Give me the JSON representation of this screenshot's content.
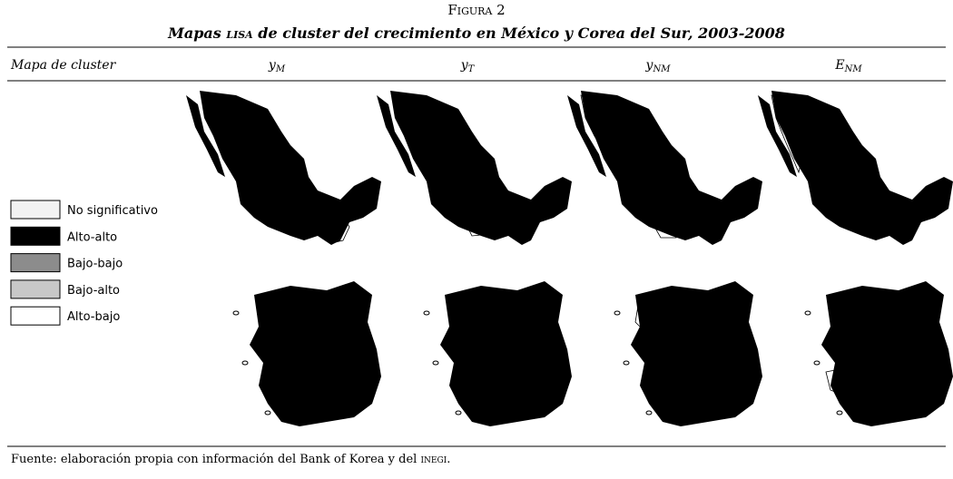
{
  "figure": {
    "label": "Figura 2",
    "title_parts": [
      "Mapas ",
      "lisa",
      " de cluster del crecimiento en México y Corea del Sur, 2003-2008"
    ],
    "row_header": "Mapa de cluster",
    "columns": [
      {
        "main": "y",
        "sub": "M"
      },
      {
        "main": "y",
        "sub": "T"
      },
      {
        "main": "y",
        "sub": "NM"
      },
      {
        "main": "E",
        "sub": "NM"
      }
    ],
    "legend": [
      {
        "label": "No significativo",
        "color": "#f2f2f2"
      },
      {
        "label": "Alto-alto",
        "color": "#000000"
      },
      {
        "label": "Bajo-bajo",
        "color": "#8c8c8c"
      },
      {
        "label": "Bajo-alto",
        "color": "#c8c8c8"
      },
      {
        "label": "Alto-bajo",
        "color": "#ffffff"
      }
    ],
    "source_parts": [
      "Fuente: elaboración propia con información del Bank of Korea y del ",
      "inegi",
      "."
    ]
  }
}
